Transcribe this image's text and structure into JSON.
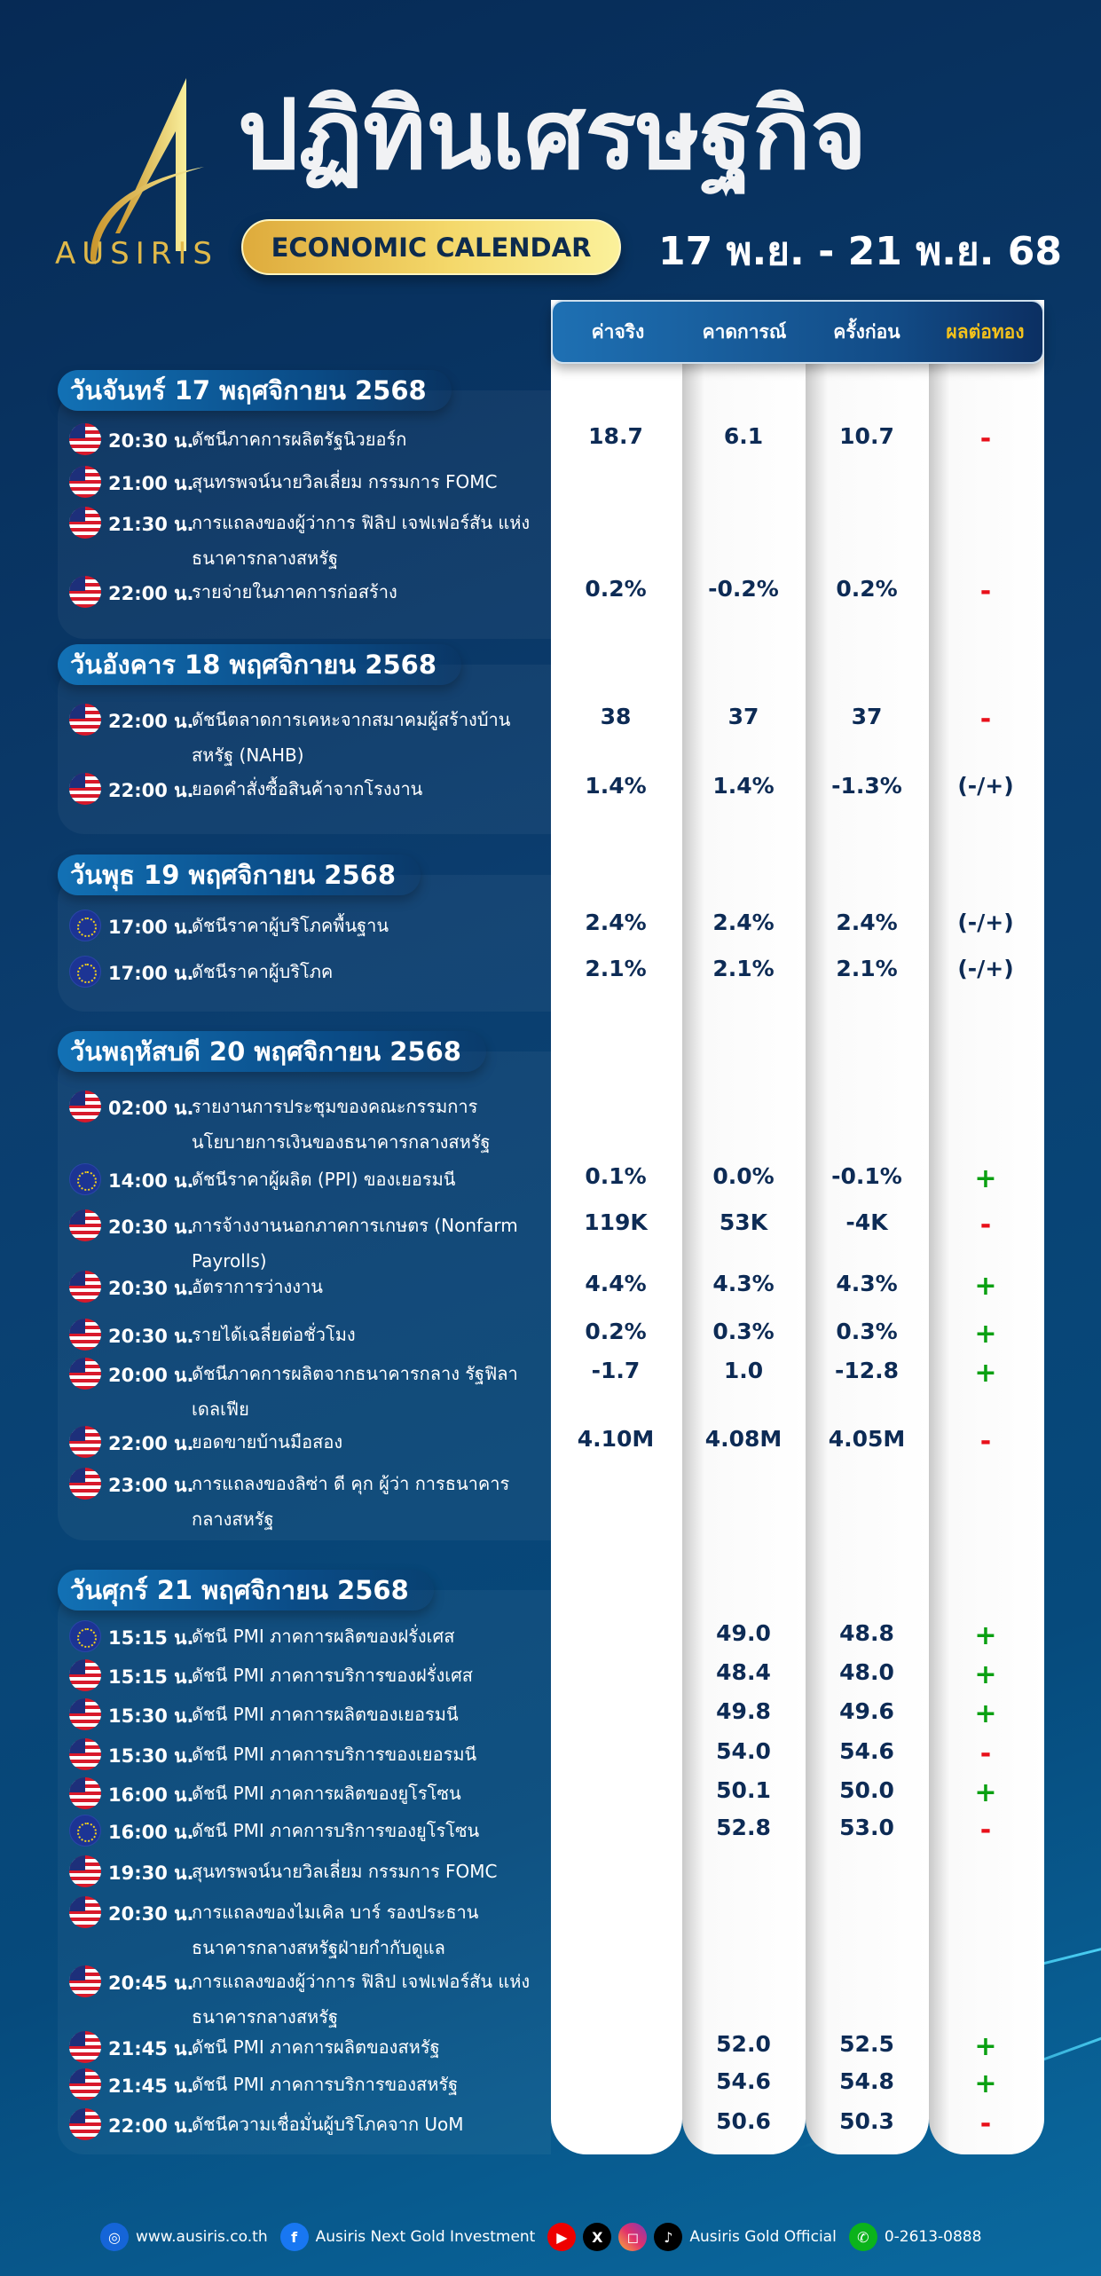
{
  "header": {
    "brand": "AUSIRIS",
    "title": "ปฏิทินเศรษฐกิจ",
    "subtitle": "ECONOMIC CALENDAR",
    "date_range": "17 พ.ย. - 21 พ.ย. 68"
  },
  "table_header": {
    "actual": "ค่าจริง",
    "forecast": "คาดการณ์",
    "previous": "ครั้งก่อน",
    "impact": "ผลต่อทอง"
  },
  "colors": {
    "positive": "#0aa012",
    "negative": "#e8101a",
    "neutral": "#0d2b55",
    "impact_header": "#f4c21c",
    "gold": "#e0b94a"
  },
  "days": [
    {
      "title": "วันจันทร์ 17 พฤศจิกายน 2568",
      "events": [
        {
          "flag": "us-flag",
          "time": "20:30 น.",
          "event": "ดัชนีภาคการผลิตรัฐนิวยอร์ก",
          "actual": "18.7",
          "forecast": "6.1",
          "previous": "10.7",
          "impact": "-"
        },
        {
          "flag": "us-flag",
          "time": "21:00 น.",
          "event": "สุนทรพจน์นายวิลเลี่ยม กรรมการ FOMC",
          "actual": "",
          "forecast": "",
          "previous": "",
          "impact": ""
        },
        {
          "flag": "us-flag",
          "time": "21:30 น.",
          "event": "การแถลงของผู้ว่าการ ฟิลิป เจฟเฟอร์สัน แห่งธนาคารกลางสหรัฐ",
          "actual": "",
          "forecast": "",
          "previous": "",
          "impact": ""
        },
        {
          "flag": "us-flag",
          "time": "22:00 น.",
          "event": "รายจ่ายในภาคการก่อสร้าง",
          "actual": "0.2%",
          "forecast": "-0.2%",
          "previous": "0.2%",
          "impact": "-"
        }
      ]
    },
    {
      "title": "วันอังคาร 18 พฤศจิกายน 2568",
      "events": [
        {
          "flag": "us-flag",
          "time": "22:00 น.",
          "event": "ดัชนีตลาดการเคหะจากสมาคมผู้สร้างบ้าน สหรัฐ (NAHB)",
          "actual": "38",
          "forecast": "37",
          "previous": "37",
          "impact": "-"
        },
        {
          "flag": "us-flag",
          "time": "22:00 น.",
          "event": "ยอดคำสั่งซื้อสินค้าจากโรงงาน",
          "actual": "1.4%",
          "forecast": "1.4%",
          "previous": "-1.3%",
          "impact": "(-/+)"
        }
      ]
    },
    {
      "title": "วันพุธ 19 พฤศจิกายน 2568",
      "events": [
        {
          "flag": "eu-flag",
          "time": "17:00 น.",
          "event": "ดัชนีราคาผู้บริโภคพื้นฐาน",
          "actual": "2.4%",
          "forecast": "2.4%",
          "previous": "2.4%",
          "impact": "(-/+)"
        },
        {
          "flag": "eu-flag",
          "time": "17:00 น.",
          "event": "ดัชนีราคาผู้บริโภค",
          "actual": "2.1%",
          "forecast": "2.1%",
          "previous": "2.1%",
          "impact": "(-/+)"
        }
      ]
    },
    {
      "title": "วันพฤหัสบดี 20 พฤศจิกายน 2568",
      "events": [
        {
          "flag": "us-flag",
          "time": "02:00 น.",
          "event": "รายงานการประชุมของคณะกรรมการ นโยบายการเงินของธนาคารกลางสหรัฐ",
          "actual": "",
          "forecast": "",
          "previous": "",
          "impact": ""
        },
        {
          "flag": "eu-flag",
          "time": "14:00 น.",
          "event": "ดัชนีราคาผู้ผลิต (PPI) ของเยอรมนี",
          "actual": "0.1%",
          "forecast": "0.0%",
          "previous": "-0.1%",
          "impact": "+"
        },
        {
          "flag": "us-flag",
          "time": "20:30 น.",
          "event": "การจ้างงานนอกภาคการเกษตร (Nonfarm Payrolls)",
          "actual": "119K",
          "forecast": "53K",
          "previous": "-4K",
          "impact": "-"
        },
        {
          "flag": "us-flag",
          "time": "20:30 น.",
          "event": "อัตราการว่างงาน",
          "actual": "4.4%",
          "forecast": "4.3%",
          "previous": "4.3%",
          "impact": "+"
        },
        {
          "flag": "us-flag",
          "time": "20:30 น.",
          "event": "รายได้เฉลี่ยต่อชั่วโมง",
          "actual": "0.2%",
          "forecast": "0.3%",
          "previous": "0.3%",
          "impact": "+"
        },
        {
          "flag": "us-flag",
          "time": "20:00 น.",
          "event": "ดัชนีภาคการผลิตจากธนาคารกลาง รัฐฟิลาเดลเฟีย",
          "actual": "-1.7",
          "forecast": "1.0",
          "previous": "-12.8",
          "impact": "+"
        },
        {
          "flag": "us-flag",
          "time": "22:00 น.",
          "event": "ยอดขายบ้านมือสอง",
          "actual": "4.10M",
          "forecast": "4.08M",
          "previous": "4.05M",
          "impact": "-"
        },
        {
          "flag": "us-flag",
          "time": "23:00 น.",
          "event": "การแถลงของลิซ่า ดี คุก ผู้ว่า การธนาคารกลางสหรัฐ",
          "actual": "",
          "forecast": "",
          "previous": "",
          "impact": ""
        }
      ]
    },
    {
      "title": "วันศุกร์ 21 พฤศจิกายน 2568",
      "events": [
        {
          "flag": "eu-flag",
          "time": "15:15 น.",
          "event": "ดัชนี PMI ภาคการผลิตของฝรั่งเศส",
          "actual": "",
          "forecast": "49.0",
          "previous": "48.8",
          "impact": "+"
        },
        {
          "flag": "us-flag",
          "time": "15:15 น.",
          "event": "ดัชนี PMI ภาคการบริการของฝรั่งเศส",
          "actual": "",
          "forecast": "48.4",
          "previous": "48.0",
          "impact": "+"
        },
        {
          "flag": "us-flag",
          "time": "15:30 น.",
          "event": "ดัชนี PMI ภาคการผลิตของเยอรมนี",
          "actual": "",
          "forecast": "49.8",
          "previous": "49.6",
          "impact": "+"
        },
        {
          "flag": "us-flag",
          "time": "15:30 น.",
          "event": "ดัชนี PMI ภาคการบริการของเยอรมนี",
          "actual": "",
          "forecast": "54.0",
          "previous": "54.6",
          "impact": "-"
        },
        {
          "flag": "us-flag",
          "time": "16:00 น.",
          "event": "ดัชนี PMI ภาคการผลิตของยูโรโซน",
          "actual": "",
          "forecast": "50.1",
          "previous": "50.0",
          "impact": "+"
        },
        {
          "flag": "eu-flag",
          "time": "16:00 น.",
          "event": "ดัชนี PMI ภาคการบริการของยูโรโซน",
          "actual": "",
          "forecast": "52.8",
          "previous": "53.0",
          "impact": "-"
        },
        {
          "flag": "us-flag",
          "time": "19:30 น.",
          "event": "สุนทรพจน์นายวิลเลี่ยม กรรมการ FOMC",
          "actual": "",
          "forecast": "",
          "previous": "",
          "impact": ""
        },
        {
          "flag": "us-flag",
          "time": "20:30 น.",
          "event": "การแถลงของไมเคิล บาร์ รองประธาน ธนาคารกลางสหรัฐฝ่ายกำกับดูแล",
          "actual": "",
          "forecast": "",
          "previous": "",
          "impact": ""
        },
        {
          "flag": "us-flag",
          "time": "20:45 น.",
          "event": "การแถลงของผู้ว่าการ ฟิลิป เจฟเฟอร์สัน แห่งธนาคารกลางสหรัฐ",
          "actual": "",
          "forecast": "",
          "previous": "",
          "impact": ""
        },
        {
          "flag": "us-flag",
          "time": "21:45 น.",
          "event": "ดัชนี PMI ภาคการผลิตของสหรัฐ",
          "actual": "",
          "forecast": "52.0",
          "previous": "52.5",
          "impact": "+"
        },
        {
          "flag": "us-flag",
          "time": "21:45 น.",
          "event": "ดัชนี PMI ภาคการบริการของสหรัฐ",
          "actual": "",
          "forecast": "54.6",
          "previous": "54.8",
          "impact": "+"
        },
        {
          "flag": "us-flag",
          "time": "22:00 น.",
          "event": "ดัชนีความเชื่อมั่นผู้บริโภคจาก UoM",
          "actual": "",
          "forecast": "50.6",
          "previous": "50.3",
          "impact": "-"
        }
      ]
    }
  ],
  "footer": {
    "website": "www.ausiris.co.th",
    "facebook": "Ausiris Next Gold Investment",
    "social_handle": "Ausiris Gold Official",
    "phone": "0-2613-0888",
    "icons": [
      "globe-icon",
      "facebook-icon",
      "youtube-icon",
      "x-icon",
      "instagram-icon",
      "tiktok-icon",
      "phone-icon"
    ]
  }
}
